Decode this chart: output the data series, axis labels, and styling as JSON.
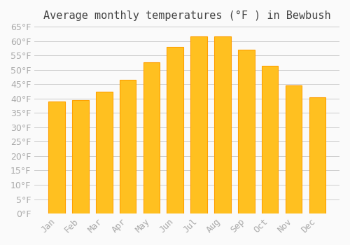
{
  "months": [
    "Jan",
    "Feb",
    "Mar",
    "Apr",
    "May",
    "Jun",
    "Jul",
    "Aug",
    "Sep",
    "Oct",
    "Nov",
    "Dec"
  ],
  "values": [
    39,
    39.5,
    42.5,
    46.5,
    52.5,
    58,
    61.5,
    61.5,
    57,
    51.5,
    44.5,
    40.5
  ],
  "bar_color": "#FFC020",
  "bar_edge_color": "#FFA000",
  "background_color": "#FAFAFA",
  "grid_color": "#CCCCCC",
  "title": "Average monthly temperatures (°F ) in Bewbush",
  "title_fontsize": 11,
  "tick_label_color": "#AAAAAA",
  "tick_fontsize": 9,
  "ylim": [
    0,
    65
  ],
  "yticks": [
    0,
    5,
    10,
    15,
    20,
    25,
    30,
    35,
    40,
    45,
    50,
    55,
    60,
    65
  ]
}
